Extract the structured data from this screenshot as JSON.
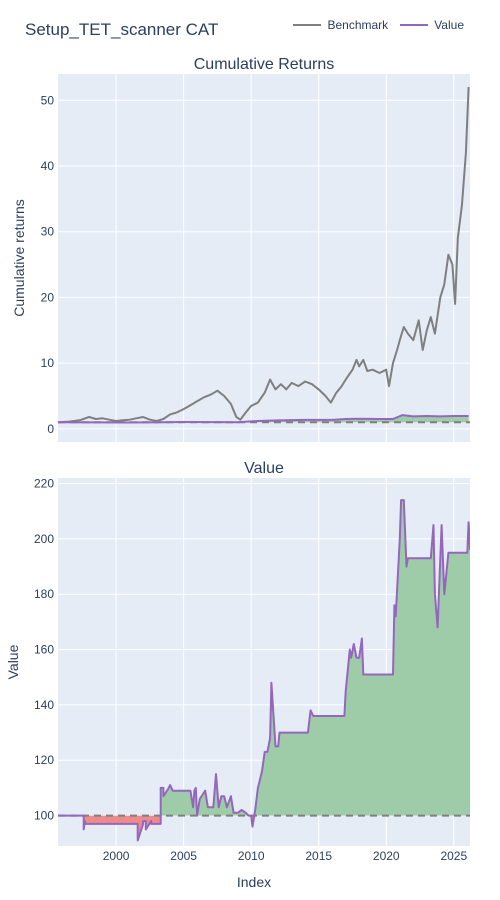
{
  "page": {
    "title": "Setup_TET_scanner CAT"
  },
  "colors": {
    "benchmark": "#7f7f7f",
    "value": "#9467bd",
    "positive_fill": "#9ecca8",
    "negative_fill": "#ee8a8a",
    "plot_bg": "#e5ecf6",
    "grid": "#ffffff",
    "baseline": "#7f7f7f"
  },
  "legend": [
    {
      "name": "Benchmark",
      "color": "#7f7f7f"
    },
    {
      "name": "Value",
      "color": "#9467bd"
    }
  ],
  "shared_x": {
    "label": "Index",
    "range": [
      1995.7,
      2026.2
    ],
    "ticks": [
      2000,
      2005,
      2010,
      2015,
      2020,
      2025
    ],
    "tick_labels": [
      "2000",
      "2005",
      "2010",
      "2015",
      "2020",
      "2025"
    ]
  },
  "chart_data": [
    {
      "type": "line",
      "title": "Cumulative Returns",
      "ylabel": "Cumulative returns",
      "ylim": [
        -2,
        54
      ],
      "yticks": [
        0,
        10,
        20,
        30,
        40,
        50
      ],
      "grid": true,
      "baseline": 1,
      "series": [
        {
          "name": "Benchmark",
          "x": [
            1995.7,
            1996.5,
            1997.3,
            1998.0,
            1998.5,
            1999.0,
            1999.5,
            2000.0,
            2000.5,
            2001.0,
            2001.5,
            2002.0,
            2002.5,
            2003.0,
            2003.5,
            2004.0,
            2004.5,
            2005.0,
            2005.5,
            2006.0,
            2006.5,
            2007.0,
            2007.5,
            2008.0,
            2008.5,
            2008.9,
            2009.2,
            2009.6,
            2010.0,
            2010.5,
            2011.0,
            2011.4,
            2011.8,
            2012.2,
            2012.6,
            2013.0,
            2013.5,
            2014.0,
            2014.5,
            2015.0,
            2015.5,
            2015.9,
            2016.3,
            2016.7,
            2017.0,
            2017.5,
            2017.8,
            2018.0,
            2018.3,
            2018.6,
            2019.0,
            2019.5,
            2020.0,
            2020.2,
            2020.5,
            2020.8,
            2021.0,
            2021.3,
            2021.6,
            2022.0,
            2022.4,
            2022.7,
            2023.0,
            2023.3,
            2023.6,
            2024.0,
            2024.3,
            2024.6,
            2024.9,
            2025.1,
            2025.3,
            2025.6,
            2025.9,
            2026.1
          ],
          "values": [
            1.0,
            1.1,
            1.3,
            1.8,
            1.5,
            1.6,
            1.4,
            1.2,
            1.3,
            1.4,
            1.6,
            1.8,
            1.4,
            1.2,
            1.5,
            2.2,
            2.5,
            3.0,
            3.6,
            4.2,
            4.8,
            5.2,
            5.8,
            5.0,
            3.8,
            1.8,
            1.4,
            2.5,
            3.5,
            4.0,
            5.5,
            7.5,
            6.0,
            6.8,
            6.0,
            7.0,
            6.5,
            7.2,
            6.8,
            6.0,
            5.0,
            4.0,
            5.5,
            6.5,
            7.5,
            9.0,
            10.5,
            9.5,
            10.5,
            8.8,
            9.0,
            8.5,
            9.0,
            6.5,
            10.0,
            12.0,
            13.5,
            15.5,
            14.5,
            13.5,
            16.5,
            12.0,
            15.0,
            17.0,
            14.5,
            20.0,
            22.0,
            26.5,
            25.0,
            19.0,
            29.0,
            34.0,
            42.0,
            52.0
          ]
        },
        {
          "name": "Value",
          "x": [
            1995.7,
            1998.0,
            2001.0,
            2003.5,
            2005.0,
            2007.0,
            2009.0,
            2010.5,
            2012.0,
            2014.0,
            2016.0,
            2017.0,
            2018.0,
            2019.5,
            2020.5,
            2021.2,
            2022.0,
            2023.0,
            2024.0,
            2025.0,
            2026.1
          ],
          "values": [
            1.0,
            0.98,
            0.97,
            1.0,
            1.05,
            1.03,
            1.02,
            1.2,
            1.28,
            1.36,
            1.36,
            1.5,
            1.55,
            1.5,
            1.5,
            2.1,
            1.9,
            1.95,
            1.9,
            1.95,
            1.95
          ]
        }
      ]
    },
    {
      "type": "area",
      "title": "Value",
      "ylabel": "Value",
      "ylim": [
        89,
        222
      ],
      "yticks": [
        100,
        120,
        140,
        160,
        180,
        200,
        220
      ],
      "grid": true,
      "baseline": 100,
      "series": [
        {
          "name": "Value",
          "x": [
            1995.7,
            1997.6,
            1997.6,
            1997.7,
            1997.7,
            1999.5,
            1999.5,
            2001.5,
            2001.5,
            2001.6,
            2001.6,
            2002.0,
            2002.0,
            2002.2,
            2002.2,
            2002.6,
            2002.6,
            2003.3,
            2003.3,
            2003.5,
            2003.5,
            2003.9,
            2004.0,
            2004.2,
            2004.3,
            2004.5,
            2004.8,
            2005.5,
            2005.7,
            2005.8,
            2005.9,
            2006.0,
            2006.2,
            2006.6,
            2006.8,
            2006.9,
            2007.0,
            2007.2,
            2007.4,
            2007.6,
            2007.8,
            2008.0,
            2008.2,
            2008.5,
            2008.7,
            2008.9,
            2009.0,
            2009.3,
            2009.6,
            2009.8,
            2010.0,
            2010.1,
            2010.3,
            2010.5,
            2010.8,
            2011.0,
            2011.1,
            2011.2,
            2011.4,
            2011.5,
            2011.8,
            2012.0,
            2012.1,
            2014.2,
            2014.4,
            2014.6,
            2016.8,
            2016.9,
            2017.0,
            2017.1,
            2017.3,
            2017.4,
            2017.6,
            2017.8,
            2018.0,
            2018.2,
            2018.3,
            2020.5,
            2020.6,
            2020.7,
            2021.0,
            2021.1,
            2021.3,
            2021.5,
            2021.6,
            2023.2,
            2023.3,
            2023.5,
            2023.6,
            2023.8,
            2024.1,
            2024.3,
            2024.6,
            2026.0,
            2026.1,
            2026.2
          ],
          "values": [
            100,
            100,
            95,
            98,
            97,
            97,
            97,
            97,
            97,
            97,
            91,
            97,
            98,
            98,
            95,
            98,
            97,
            97,
            110,
            110,
            107,
            110,
            111,
            109,
            109,
            109,
            109,
            109,
            103,
            109,
            110,
            100,
            106,
            109,
            103,
            103,
            103,
            103,
            115,
            103,
            107,
            107,
            103,
            107,
            101,
            101,
            101,
            102,
            101,
            100,
            100,
            96,
            102,
            110,
            116,
            123,
            123,
            123,
            128,
            148,
            125,
            125,
            130,
            130,
            138,
            136,
            136,
            136,
            145,
            150,
            160,
            157,
            162,
            157,
            157,
            164,
            151,
            151,
            176,
            172,
            200,
            214,
            214,
            190,
            193,
            193,
            193,
            205,
            180,
            168,
            205,
            180,
            195,
            195,
            206,
            196
          ]
        }
      ]
    }
  ]
}
